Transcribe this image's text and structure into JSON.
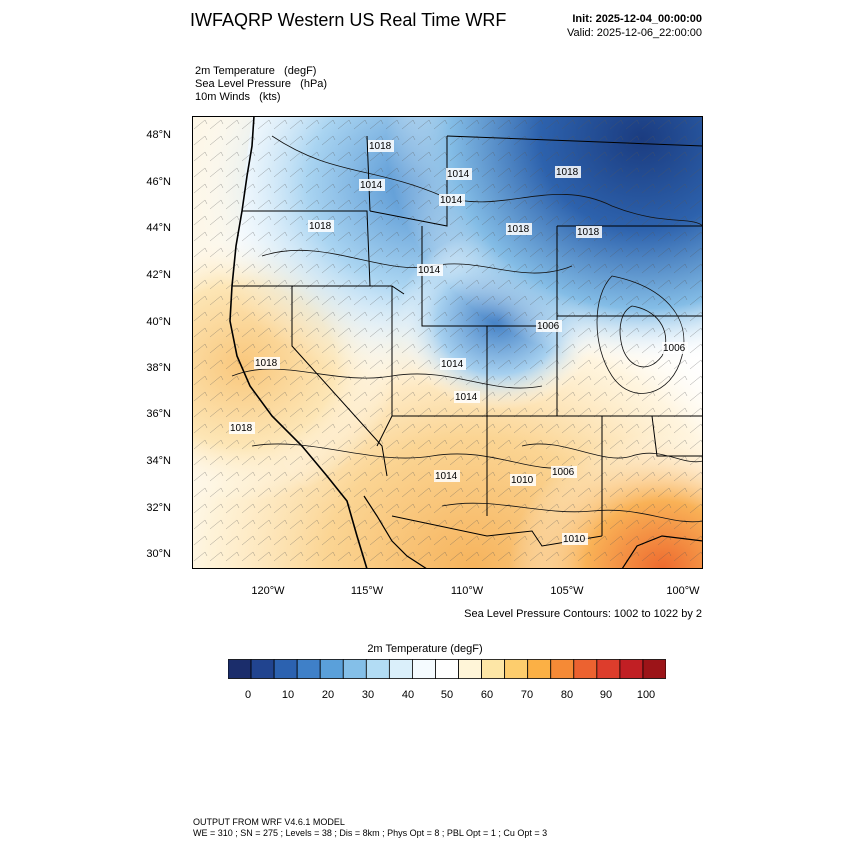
{
  "header": {
    "title": "IWFAQRP Western US Real Time WRF",
    "init": "Init: 2025-12-04_00:00:00",
    "valid": "Valid: 2025-12-06_22:00:00"
  },
  "fields": [
    "2m Temperature   (degF)",
    "Sea Level Pressure   (hPa)",
    "10m Winds   (kts)"
  ],
  "axes": {
    "lat_labels": [
      "48°N",
      "46°N",
      "44°N",
      "42°N",
      "40°N",
      "38°N",
      "36°N",
      "34°N",
      "32°N",
      "30°N"
    ],
    "lon_labels": [
      "120°W",
      "115°W",
      "110°W",
      "105°W",
      "100°W"
    ]
  },
  "slp_note": "Sea Level Pressure Contours: 1002 to 1022 by 2",
  "pressure_labels": [
    "1018",
    "1014",
    "1014",
    "1018",
    "1018",
    "1014",
    "1014",
    "1018",
    "1018",
    "1006",
    "1006",
    "1018",
    "1018",
    "1014",
    "1014",
    "1014",
    "1010",
    "1006",
    "1010"
  ],
  "colorbar": {
    "title": "2m Temperature  (degF)",
    "labels": [
      "0",
      "10",
      "20",
      "30",
      "40",
      "50",
      "60",
      "70",
      "80",
      "90",
      "100"
    ],
    "colors": [
      "#1b2d6b",
      "#21448f",
      "#2c62b0",
      "#3f80c8",
      "#5aa0da",
      "#84bfe8",
      "#b2dcf4",
      "#daeffa",
      "#f5fbff",
      "#ffffff",
      "#fff5d8",
      "#fde6a6",
      "#fdcd6d",
      "#fbb045",
      "#f58a36",
      "#ec6230",
      "#dd3d2c",
      "#c11f24",
      "#9c1418"
    ]
  },
  "footer": {
    "line1": "OUTPUT FROM WRF V4.6.1 MODEL",
    "line2": "WE = 310 ; SN = 275 ; Levels = 38 ; Dis = 8km ; Phys Opt = 8 ; PBL Opt = 1 ; Cu Opt = 3"
  }
}
